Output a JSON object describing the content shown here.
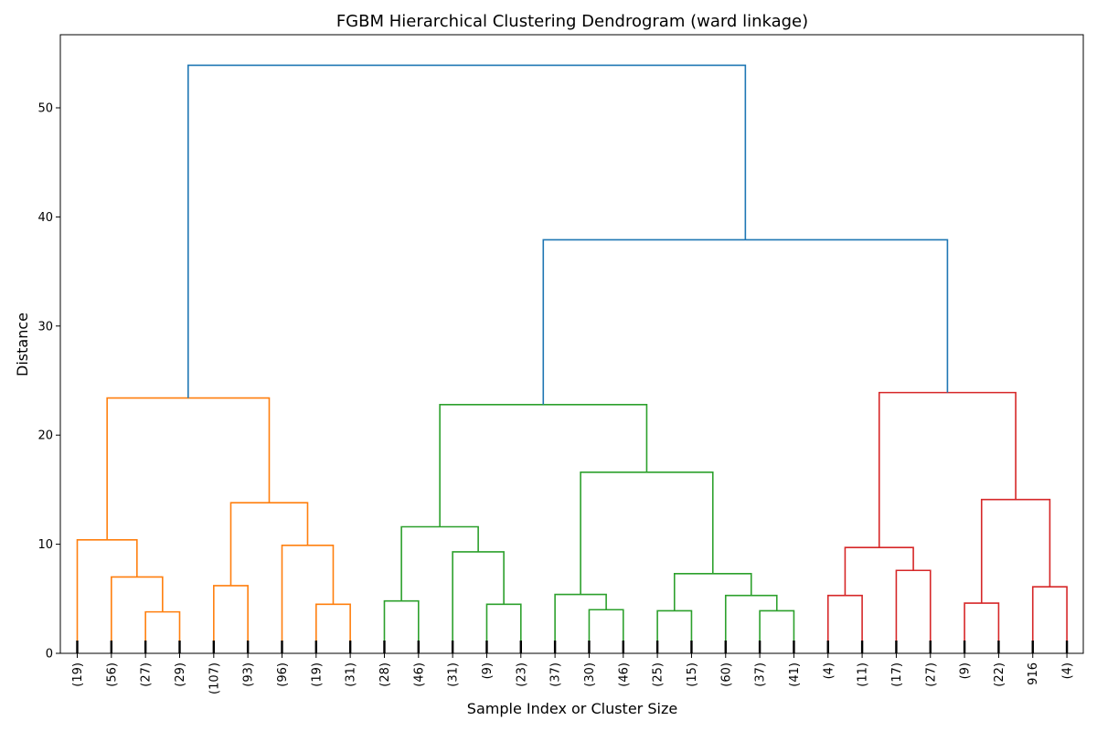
{
  "chart_data": {
    "type": "dendrogram",
    "title": "FGBM Hierarchical Clustering Dendrogram (ward linkage)",
    "xlabel": "Sample Index or Cluster Size",
    "ylabel": "Distance",
    "ylim": [
      0,
      56.7
    ],
    "yticks": [
      0,
      10,
      20,
      30,
      40,
      50
    ],
    "grid": false,
    "legend": "none",
    "colors": {
      "cluster_1": "#ff7f0e",
      "cluster_2": "#2ca02c",
      "cluster_3": "#d62728",
      "above_threshold": "#1f77b4",
      "leaf_markers": "#000000"
    },
    "leaves": [
      "(19)",
      "(56)",
      "(27)",
      "(29)",
      "(107)",
      "(93)",
      "(96)",
      "(19)",
      "(31)",
      "(28)",
      "(46)",
      "(31)",
      "(9)",
      "(23)",
      "(37)",
      "(30)",
      "(46)",
      "(25)",
      "(15)",
      "(60)",
      "(37)",
      "(41)",
      "(4)",
      "(11)",
      "(17)",
      "(27)",
      "(9)",
      "(22)",
      "916",
      "(4)"
    ],
    "merges": [
      {
        "left": 2,
        "right": 3,
        "height": 3.8,
        "color": "cluster_1"
      },
      {
        "left": 1,
        "right": "m0",
        "height": 7.0,
        "color": "cluster_1"
      },
      {
        "left": 0,
        "right": "m1",
        "height": 10.4,
        "color": "cluster_1"
      },
      {
        "left": 4,
        "right": 5,
        "height": 6.2,
        "color": "cluster_1"
      },
      {
        "left": 7,
        "right": 8,
        "height": 4.5,
        "color": "cluster_1"
      },
      {
        "left": 6,
        "right": "m4",
        "height": 9.9,
        "color": "cluster_1"
      },
      {
        "left": "m3",
        "right": "m5",
        "height": 13.8,
        "color": "cluster_1"
      },
      {
        "left": "m2",
        "right": "m6",
        "height": 23.4,
        "color": "cluster_1"
      },
      {
        "left": 9,
        "right": 10,
        "height": 4.8,
        "color": "cluster_2"
      },
      {
        "left": 12,
        "right": 13,
        "height": 4.5,
        "color": "cluster_2"
      },
      {
        "left": 11,
        "right": "m9",
        "height": 9.3,
        "color": "cluster_2"
      },
      {
        "left": "m8",
        "right": "m10",
        "height": 11.6,
        "color": "cluster_2"
      },
      {
        "left": 15,
        "right": 16,
        "height": 4.0,
        "color": "cluster_2"
      },
      {
        "left": 14,
        "right": "m12",
        "height": 5.4,
        "color": "cluster_2"
      },
      {
        "left": 17,
        "right": 18,
        "height": 3.9,
        "color": "cluster_2"
      },
      {
        "left": 20,
        "right": 21,
        "height": 3.9,
        "color": "cluster_2"
      },
      {
        "left": 19,
        "right": "m15",
        "height": 5.3,
        "color": "cluster_2"
      },
      {
        "left": "m14",
        "right": "m16",
        "height": 7.3,
        "color": "cluster_2"
      },
      {
        "left": "m13",
        "right": "m17",
        "height": 16.6,
        "color": "cluster_2"
      },
      {
        "left": "m11",
        "right": "m18",
        "height": 22.8,
        "color": "cluster_2"
      },
      {
        "left": 22,
        "right": 23,
        "height": 5.3,
        "color": "cluster_3"
      },
      {
        "left": 24,
        "right": 25,
        "height": 7.6,
        "color": "cluster_3"
      },
      {
        "left": "m20",
        "right": "m21",
        "height": 9.7,
        "color": "cluster_3"
      },
      {
        "left": 26,
        "right": 27,
        "height": 4.6,
        "color": "cluster_3"
      },
      {
        "left": 28,
        "right": 29,
        "height": 6.1,
        "color": "cluster_3"
      },
      {
        "left": "m23",
        "right": "m24",
        "height": 14.1,
        "color": "cluster_3"
      },
      {
        "left": "m22",
        "right": "m25",
        "height": 23.9,
        "color": "cluster_3"
      },
      {
        "left": "m19",
        "right": "m26",
        "height": 37.9,
        "color": "above_threshold"
      },
      {
        "left": "m7",
        "right": "m27",
        "height": 53.9,
        "color": "above_threshold"
      }
    ]
  }
}
